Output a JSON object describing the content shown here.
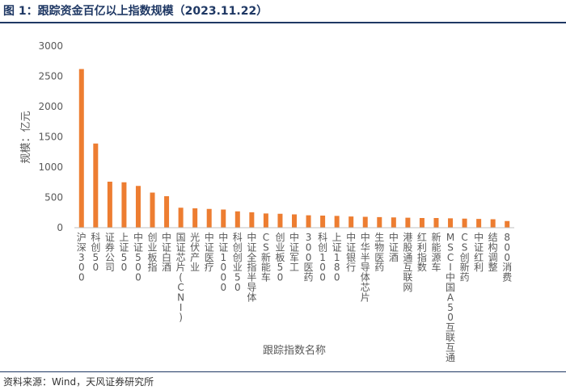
{
  "figure": {
    "title": "图 1：跟踪资金百亿以上指数规模（2023.11.22）",
    "source": "资料来源：Wind，天风证券研究所"
  },
  "colors": {
    "bar": "#ED7D31",
    "axis": "#BFBFBF",
    "title": "#1F3864",
    "text": "#595959"
  },
  "chart_data": {
    "type": "bar",
    "title": "",
    "xlabel": "跟踪指数名称",
    "ylabel": "规模：亿元",
    "ylim": [
      0,
      3000
    ],
    "yticks": [
      0,
      500,
      1000,
      1500,
      2000,
      2500,
      3000
    ],
    "grid": false,
    "categories": [
      "沪深300",
      "科创50",
      "证券公司",
      "上证50",
      "中证500",
      "创业板指",
      "中证白酒",
      "国证芯片(CNI)",
      "光伏产业",
      "中证医疗",
      "中证1000",
      "科创创业50",
      "中证全指半导体",
      "CS新能车",
      "创业板50",
      "中证军工",
      "300医药",
      "科创100",
      "上证180",
      "中证银行",
      "中华半导体芯片",
      "生物医药",
      "中证酒",
      "港股通互联网",
      "红利指数",
      "新能源车",
      "MSCI中国A50互联互通",
      "CS创新药",
      "中证红利",
      "结构调整",
      "800消费"
    ],
    "values": [
      2620,
      1390,
      760,
      750,
      690,
      580,
      520,
      330,
      320,
      310,
      300,
      270,
      255,
      235,
      230,
      220,
      205,
      200,
      195,
      185,
      180,
      175,
      170,
      165,
      160,
      160,
      155,
      150,
      145,
      140,
      110
    ]
  }
}
